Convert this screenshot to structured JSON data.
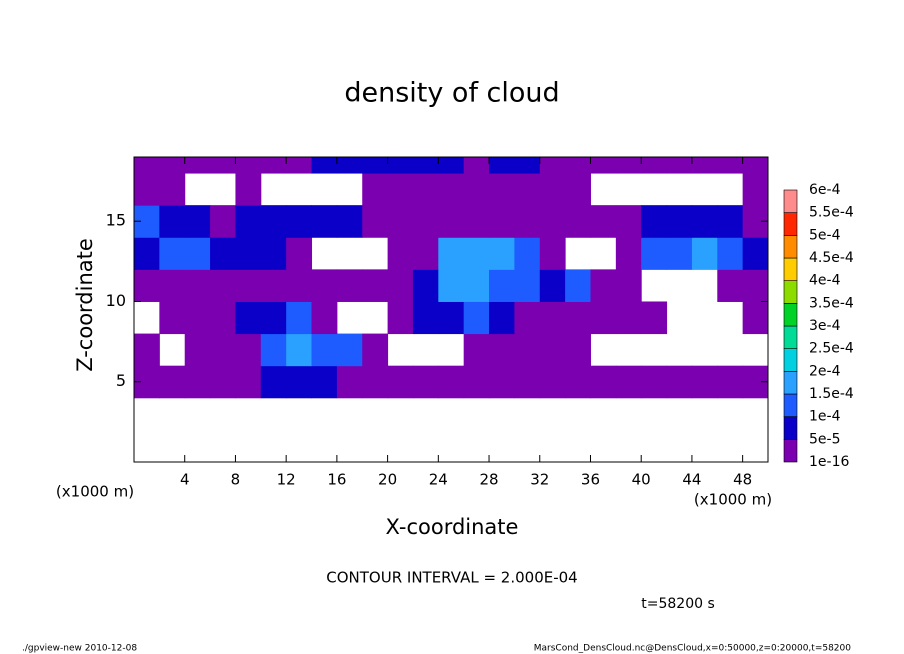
{
  "chart_data": {
    "type": "heatmap",
    "title": "density of cloud",
    "x_label": "X-coordinate",
    "y_label": "Z-coordinate",
    "x_unit": "(x1000 m)",
    "y_unit": "(x1000 m)",
    "contour_note": "CONTOUR INTERVAL = 2.000E-04",
    "time_note": "t=58200 s",
    "footer_left": "./gpview-new  2010-12-08",
    "footer_right": "MarsCond_DensCloud.nc@DensCloud,x=0:50000,z=0:20000,t=58200",
    "xlim": [
      0,
      50
    ],
    "ylim": [
      0,
      19
    ],
    "xticks": [
      4,
      8,
      12,
      16,
      20,
      24,
      28,
      32,
      36,
      40,
      44,
      48
    ],
    "yticks": [
      5,
      10,
      15
    ],
    "x_edges": [
      0,
      2,
      4,
      6,
      8,
      10,
      12,
      14,
      16,
      18,
      20,
      22,
      24,
      26,
      28,
      30,
      32,
      34,
      36,
      38,
      40,
      42,
      44,
      46,
      48,
      50
    ],
    "z_edges": [
      0,
      2,
      4,
      6,
      8,
      10,
      12,
      14,
      16,
      18,
      19
    ],
    "values": [
      [
        null,
        null,
        null,
        null,
        null,
        null,
        null,
        null,
        null,
        null,
        null,
        null,
        null,
        null,
        null,
        null,
        null,
        null,
        null,
        null,
        null,
        null,
        null,
        null,
        null
      ],
      [
        null,
        null,
        null,
        null,
        null,
        null,
        null,
        null,
        null,
        null,
        null,
        null,
        null,
        null,
        null,
        null,
        null,
        null,
        null,
        null,
        null,
        null,
        null,
        null,
        null
      ],
      [
        2e-05,
        2e-05,
        2e-05,
        2e-05,
        2e-05,
        7e-05,
        7e-05,
        7e-05,
        2e-05,
        2e-05,
        2e-05,
        2e-05,
        2e-05,
        2e-05,
        2e-05,
        2e-05,
        2e-05,
        2e-05,
        2e-05,
        2e-05,
        2e-05,
        2e-05,
        2e-05,
        2e-05,
        2e-05
      ],
      [
        2e-05,
        null,
        2e-05,
        2e-05,
        2e-05,
        0.00012,
        0.00017,
        0.00012,
        0.00012,
        2e-05,
        null,
        null,
        null,
        2e-05,
        2e-05,
        2e-05,
        2e-05,
        2e-05,
        null,
        null,
        null,
        null,
        null,
        null,
        null
      ],
      [
        null,
        2e-05,
        2e-05,
        2e-05,
        7e-05,
        7e-05,
        0.00012,
        2e-05,
        null,
        null,
        2e-05,
        7e-05,
        7e-05,
        0.00012,
        7e-05,
        2e-05,
        2e-05,
        2e-05,
        2e-05,
        2e-05,
        2e-05,
        null,
        null,
        null,
        2e-05
      ],
      [
        2e-05,
        2e-05,
        2e-05,
        2e-05,
        2e-05,
        2e-05,
        2e-05,
        2e-05,
        2e-05,
        2e-05,
        2e-05,
        7e-05,
        0.00017,
        0.00017,
        0.00012,
        0.00012,
        7e-05,
        0.00012,
        2e-05,
        2e-05,
        null,
        null,
        null,
        2e-05,
        2e-05
      ],
      [
        7e-05,
        0.00012,
        0.00012,
        7e-05,
        7e-05,
        7e-05,
        2e-05,
        null,
        null,
        null,
        2e-05,
        2e-05,
        0.00017,
        0.00017,
        0.00017,
        0.00012,
        2e-05,
        null,
        null,
        2e-05,
        0.00012,
        0.00012,
        0.00017,
        0.00012,
        7e-05
      ],
      [
        0.00012,
        7e-05,
        7e-05,
        2e-05,
        7e-05,
        7e-05,
        7e-05,
        7e-05,
        7e-05,
        2e-05,
        2e-05,
        2e-05,
        2e-05,
        2e-05,
        2e-05,
        2e-05,
        2e-05,
        2e-05,
        2e-05,
        2e-05,
        7e-05,
        7e-05,
        7e-05,
        7e-05,
        2e-05
      ],
      [
        2e-05,
        2e-05,
        null,
        null,
        2e-05,
        null,
        null,
        null,
        null,
        2e-05,
        2e-05,
        2e-05,
        2e-05,
        2e-05,
        2e-05,
        2e-05,
        2e-05,
        2e-05,
        null,
        null,
        null,
        null,
        null,
        null,
        2e-05
      ],
      [
        2e-05,
        2e-05,
        2e-05,
        2e-05,
        2e-05,
        2e-05,
        2e-05,
        7e-05,
        7e-05,
        7e-05,
        7e-05,
        7e-05,
        7e-05,
        2e-05,
        7e-05,
        7e-05,
        2e-05,
        2e-05,
        2e-05,
        2e-05,
        2e-05,
        2e-05,
        2e-05,
        2e-05,
        2e-05
      ]
    ],
    "levels": [
      {
        "value": 1e-16,
        "label": "1e-16"
      },
      {
        "value": 5e-05,
        "label": "5e-5"
      },
      {
        "value": 0.0001,
        "label": "1e-4"
      },
      {
        "value": 0.00015,
        "label": "1.5e-4"
      },
      {
        "value": 0.0002,
        "label": "2e-4"
      },
      {
        "value": 0.00025,
        "label": "2.5e-4"
      },
      {
        "value": 0.0003,
        "label": "3e-4"
      },
      {
        "value": 0.00035,
        "label": "3.5e-4"
      },
      {
        "value": 0.0004,
        "label": "4e-4"
      },
      {
        "value": 0.00045,
        "label": "4.5e-4"
      },
      {
        "value": 0.0005,
        "label": "5e-4"
      },
      {
        "value": 0.00055,
        "label": "5.5e-4"
      },
      {
        "value": 0.0006,
        "label": "6e-4"
      }
    ],
    "colors": [
      "#7a00b0",
      "#0a00c8",
      "#1e5cff",
      "#2aa0ff",
      "#00d0e0",
      "#00dc96",
      "#00d228",
      "#8cdc00",
      "#ffcc00",
      "#ff8c00",
      "#ff2800",
      "#ff8c8c"
    ]
  }
}
